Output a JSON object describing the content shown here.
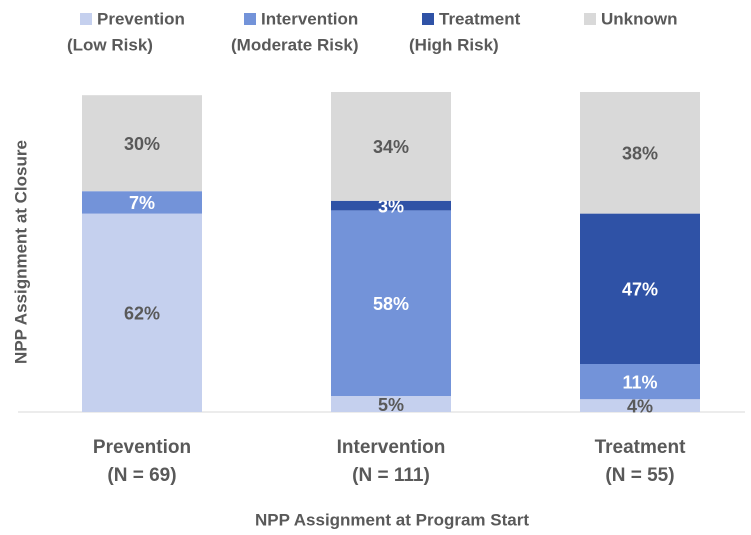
{
  "chart_data": {
    "type": "stacked_bar",
    "categories": [
      [
        "Prevention",
        "(N = 69)"
      ],
      [
        "Intervention",
        "(N = 111)"
      ],
      [
        "Treatment",
        "(N = 55)"
      ]
    ],
    "series": [
      {
        "name": [
          "Prevention",
          "(Low Risk)"
        ],
        "color": "#c5d0ee",
        "label_color": "#595959",
        "values": [
          62,
          5,
          4
        ],
        "value_labels": [
          "62%",
          "5%",
          "4%"
        ]
      },
      {
        "name": [
          "Intervention",
          "(Moderate Risk)"
        ],
        "color": "#7393d9",
        "label_color": "#ffffff",
        "values": [
          7,
          58,
          11
        ],
        "value_labels": [
          "7%",
          "58%",
          "11%"
        ]
      },
      {
        "name": [
          "Treatment",
          "(High Risk)"
        ],
        "color": "#2f52a6",
        "label_color": "#ffffff",
        "values": [
          0,
          3,
          47
        ],
        "value_labels": [
          null,
          "3%",
          "47%"
        ]
      },
      {
        "name": [
          "Unknown"
        ],
        "color": "#d9d9d9",
        "label_color": "#595959",
        "values": [
          30,
          34,
          38
        ],
        "value_labels": [
          "30%",
          "34%",
          "38%"
        ]
      }
    ],
    "ylim": [
      0,
      100
    ],
    "x_label": "NPP Assignment at Program Start",
    "y_label": "NPP Assignment at Closure",
    "legend": "top"
  }
}
